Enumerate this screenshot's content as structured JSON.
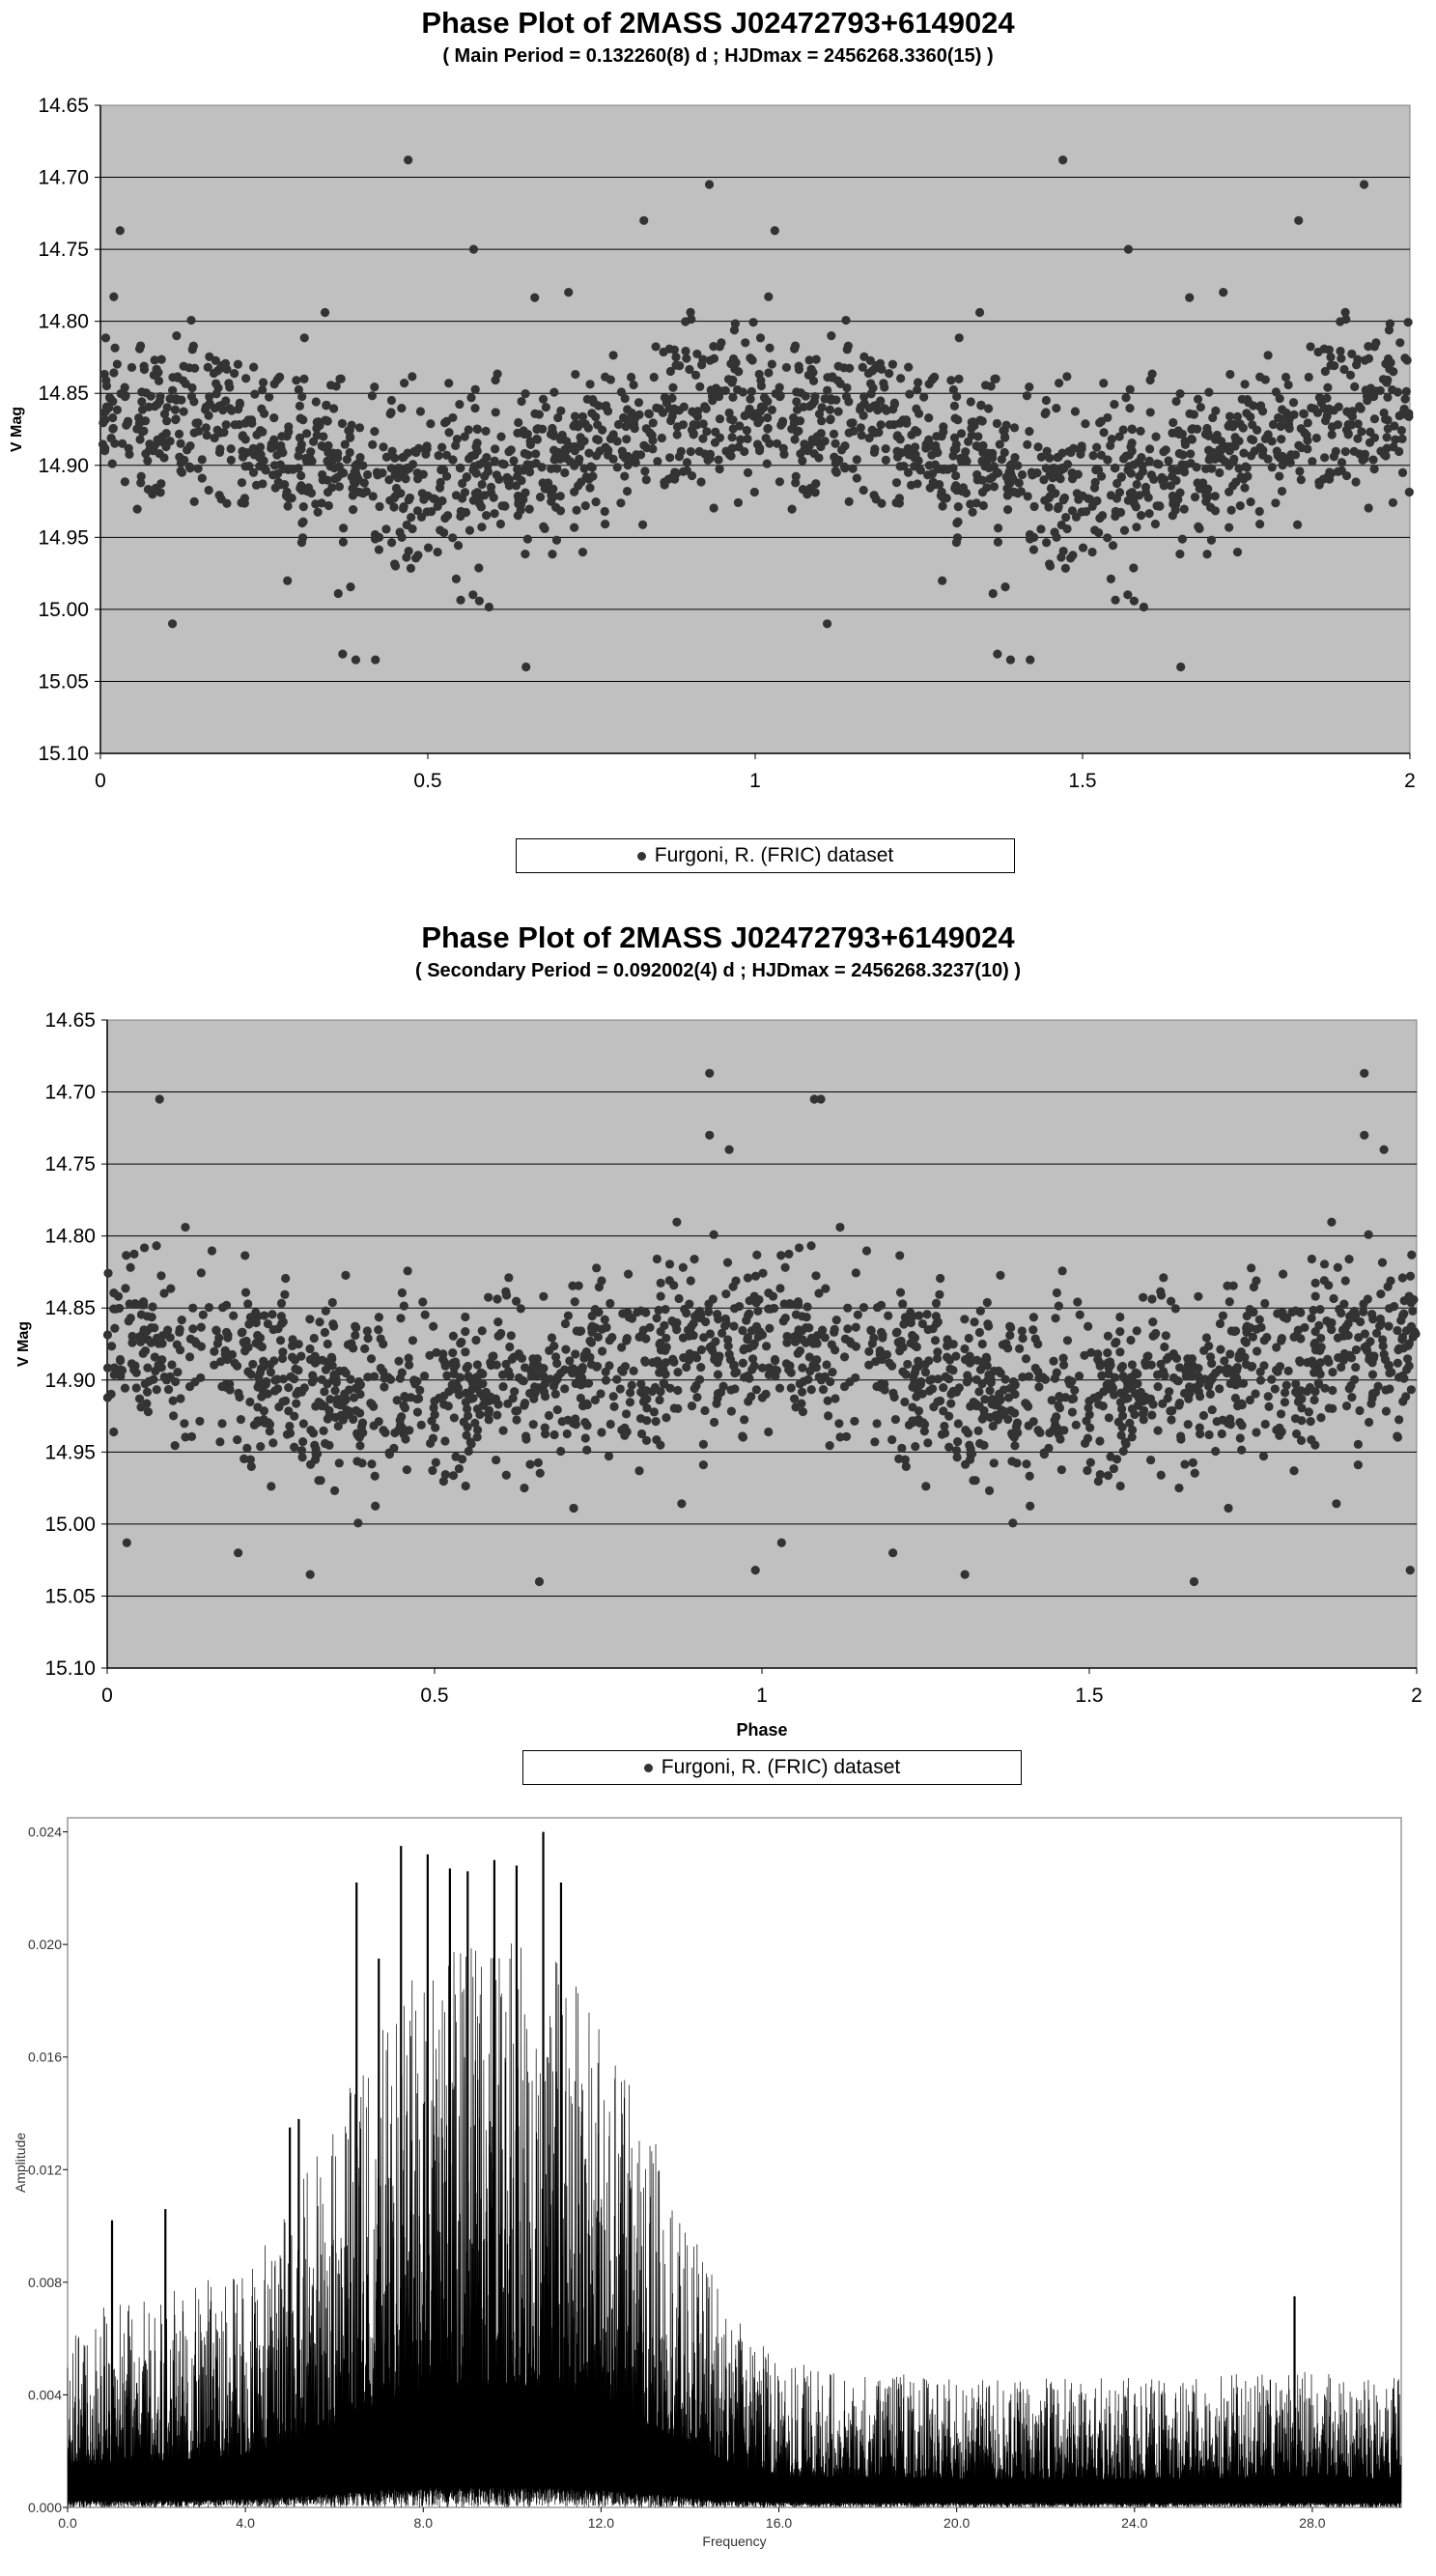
{
  "chart_data": [
    {
      "type": "scatter",
      "title": "Phase Plot of 2MASS J02472793+6149024",
      "subtitle": "( Main Period = 0.132260(8) d ; HJDmax = 2456268.3360(15) )",
      "xlabel": "",
      "ylabel": "V Mag",
      "xlim": [
        0,
        2
      ],
      "ylim": [
        15.1,
        14.65
      ],
      "y_inverted": true,
      "x_ticks": [
        "0",
        "0.5",
        "1",
        "1.5",
        "2"
      ],
      "y_ticks": [
        "14.65",
        "14.70",
        "14.75",
        "14.80",
        "14.85",
        "14.90",
        "14.95",
        "15.00",
        "15.05",
        "15.10"
      ],
      "grid": "horizontal",
      "legend_position": "bottom",
      "series": [
        {
          "name": "Furgoni, R. (FRIC) dataset",
          "color": "#333333",
          "phased_sinusoid": {
            "mean": 14.887,
            "amplitude": 0.027,
            "peak_phase": 0.0,
            "cycles_per_phase_unit": 1
          },
          "points_per_cycle": 900,
          "scatter_sigma": 0.028,
          "outliers": [
            [
              0.47,
              14.688
            ],
            [
              0.03,
              14.737
            ],
            [
              0.57,
              14.75
            ],
            [
              0.83,
              14.73
            ],
            [
              0.93,
              14.705
            ],
            [
              0.65,
              15.04
            ],
            [
              0.42,
              15.035
            ],
            [
              0.39,
              15.035
            ],
            [
              0.11,
              15.01
            ],
            [
              0.37,
              15.031
            ]
          ]
        }
      ]
    },
    {
      "type": "scatter",
      "title": "Phase Plot of 2MASS J02472793+6149024",
      "subtitle": "( Secondary Period = 0.092002(4) d ; HJDmax = 2456268.3237(10) )",
      "xlabel": "Phase",
      "ylabel": "V Mag",
      "xlim": [
        0,
        2
      ],
      "ylim": [
        15.1,
        14.65
      ],
      "y_inverted": true,
      "x_ticks": [
        "0",
        "0.5",
        "1",
        "1.5",
        "2"
      ],
      "y_ticks": [
        "14.65",
        "14.70",
        "14.75",
        "14.80",
        "14.85",
        "14.90",
        "14.95",
        "15.00",
        "15.05",
        "15.10"
      ],
      "grid": "horizontal",
      "legend_position": "bottom",
      "series": [
        {
          "name": "Furgoni, R. (FRIC) dataset",
          "color": "#333333",
          "phased_sinusoid": {
            "mean": 14.893,
            "amplitude": 0.018,
            "peak_phase": 0.0,
            "cycles_per_phase_unit": 1
          },
          "points_per_cycle": 900,
          "scatter_sigma": 0.03,
          "outliers": [
            [
              0.92,
              14.687
            ],
            [
              0.08,
              14.705
            ],
            [
              1.09,
              14.705
            ],
            [
              0.92,
              14.73
            ],
            [
              0.95,
              14.74
            ],
            [
              0.66,
              15.04
            ],
            [
              0.31,
              15.035
            ],
            [
              0.99,
              15.032
            ],
            [
              0.2,
              15.02
            ],
            [
              0.03,
              15.013
            ]
          ]
        }
      ]
    },
    {
      "type": "line",
      "title": "",
      "xlabel": "Frequency",
      "ylabel": "Amplitude",
      "xlim": [
        0,
        30
      ],
      "ylim": [
        0,
        0.0245
      ],
      "x_ticks": [
        "0.0",
        "4.0",
        "8.0",
        "12.0",
        "16.0",
        "20.0",
        "24.0",
        "28.0"
      ],
      "y_ticks": [
        "0.000",
        "0.004",
        "0.008",
        "0.012",
        "0.016",
        "0.020",
        "0.024"
      ],
      "grid": "none",
      "series": [
        {
          "name": "",
          "color": "#000000",
          "frequency_step": 0.005,
          "envelope": [
            [
              0,
              0.006
            ],
            [
              2,
              0.0065
            ],
            [
              4,
              0.0075
            ],
            [
              5,
              0.0095
            ],
            [
              6,
              0.012
            ],
            [
              7,
              0.015
            ],
            [
              8,
              0.017
            ],
            [
              9,
              0.0175
            ],
            [
              10,
              0.0175
            ],
            [
              11,
              0.017
            ],
            [
              12,
              0.015
            ],
            [
              13,
              0.012
            ],
            [
              14,
              0.009
            ],
            [
              15,
              0.006
            ],
            [
              16,
              0.0045
            ],
            [
              18,
              0.0042
            ],
            [
              20,
              0.004
            ],
            [
              24,
              0.004
            ],
            [
              28,
              0.0042
            ],
            [
              30,
              0.004
            ]
          ],
          "peaks": [
            [
              7.5,
              0.0235
            ],
            [
              8.1,
              0.0232
            ],
            [
              9.0,
              0.0226
            ],
            [
              9.6,
              0.023
            ],
            [
              10.7,
              0.024
            ],
            [
              11.1,
              0.0222
            ],
            [
              6.5,
              0.0222
            ],
            [
              10.1,
              0.0228
            ],
            [
              8.6,
              0.0227
            ],
            [
              7.0,
              0.0195
            ],
            [
              5.2,
              0.0138
            ],
            [
              5.0,
              0.0135
            ],
            [
              1.0,
              0.0102
            ],
            [
              2.2,
              0.0106
            ],
            [
              27.6,
              0.0075
            ]
          ]
        }
      ]
    }
  ]
}
